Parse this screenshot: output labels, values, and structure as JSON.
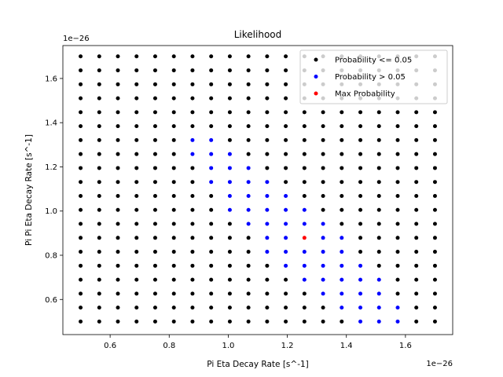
{
  "chart_data": {
    "type": "scatter",
    "title": "Likelihood",
    "xlabel": "Pi Eta Decay Rate [s^-1]",
    "ylabel": "Pi Pi Eta Decay Rate [s^-1]",
    "x_offset_text": "1e−26",
    "y_offset_text": "1e−26",
    "xlim": [
      0.44,
      1.76
    ],
    "ylim": [
      0.441,
      1.749
    ],
    "xticks": [
      0.6,
      0.8,
      1.0,
      1.2,
      1.4,
      1.6
    ],
    "xtick_labels": [
      "0.6",
      "0.8",
      "1.0",
      "1.2",
      "1.4",
      "1.6"
    ],
    "yticks": [
      0.6,
      0.8,
      1.0,
      1.2,
      1.4,
      1.6
    ],
    "ytick_labels": [
      "0.6",
      "0.8",
      "1.0",
      "1.2",
      "1.4",
      "1.6"
    ],
    "grid": false,
    "legend_position": "top-right",
    "grid_x": [
      0.5,
      0.5632,
      0.6263,
      0.6895,
      0.7526,
      0.8158,
      0.8789,
      0.9421,
      1.0053,
      1.0684,
      1.1316,
      1.1947,
      1.2579,
      1.3211,
      1.3842,
      1.4474,
      1.5105,
      1.5737,
      1.6368,
      1.7
    ],
    "grid_y": [
      0.5,
      0.5632,
      0.6263,
      0.6895,
      0.7526,
      0.8158,
      0.8789,
      0.9421,
      1.0053,
      1.0684,
      1.1316,
      1.1947,
      1.2579,
      1.3211,
      1.3842,
      1.4474,
      1.5105,
      1.5737,
      1.6368,
      1.7
    ],
    "series": [
      {
        "name": "Probability <= 0.05",
        "color": "#000000",
        "rule": "all grid points not listed in the other series"
      },
      {
        "name": "Probability > 0.05",
        "color": "#0000ff",
        "points": [
          [
            0.8789,
            1.3211
          ],
          [
            0.8789,
            1.2579
          ],
          [
            0.9421,
            1.3211
          ],
          [
            0.9421,
            1.2579
          ],
          [
            0.9421,
            1.1947
          ],
          [
            0.9421,
            1.1316
          ],
          [
            1.0053,
            1.2579
          ],
          [
            1.0053,
            1.1947
          ],
          [
            1.0053,
            1.1316
          ],
          [
            1.0053,
            1.0684
          ],
          [
            1.0053,
            1.0053
          ],
          [
            1.0684,
            1.1947
          ],
          [
            1.0684,
            1.1316
          ],
          [
            1.0684,
            1.0684
          ],
          [
            1.0684,
            1.0053
          ],
          [
            1.0684,
            0.9421
          ],
          [
            1.1316,
            1.1316
          ],
          [
            1.1316,
            1.0684
          ],
          [
            1.1316,
            1.0053
          ],
          [
            1.1316,
            0.9421
          ],
          [
            1.1316,
            0.8789
          ],
          [
            1.1316,
            0.8158
          ],
          [
            1.1947,
            1.0684
          ],
          [
            1.1947,
            1.0053
          ],
          [
            1.1947,
            0.9421
          ],
          [
            1.1947,
            0.8789
          ],
          [
            1.1947,
            0.8158
          ],
          [
            1.1947,
            0.7526
          ],
          [
            1.2579,
            1.0053
          ],
          [
            1.2579,
            0.9421
          ],
          [
            1.2579,
            0.8158
          ],
          [
            1.2579,
            0.7526
          ],
          [
            1.2579,
            0.6895
          ],
          [
            1.3211,
            0.9421
          ],
          [
            1.3211,
            0.8789
          ],
          [
            1.3211,
            0.8158
          ],
          [
            1.3211,
            0.7526
          ],
          [
            1.3211,
            0.6895
          ],
          [
            1.3211,
            0.6263
          ],
          [
            1.3842,
            0.8789
          ],
          [
            1.3842,
            0.8158
          ],
          [
            1.3842,
            0.7526
          ],
          [
            1.3842,
            0.6895
          ],
          [
            1.3842,
            0.6263
          ],
          [
            1.3842,
            0.5632
          ],
          [
            1.4474,
            0.7526
          ],
          [
            1.4474,
            0.6895
          ],
          [
            1.4474,
            0.6263
          ],
          [
            1.4474,
            0.5632
          ],
          [
            1.4474,
            0.5
          ],
          [
            1.5105,
            0.6895
          ],
          [
            1.5105,
            0.6263
          ],
          [
            1.5105,
            0.5632
          ],
          [
            1.5105,
            0.5
          ],
          [
            1.5737,
            0.5632
          ],
          [
            1.5737,
            0.5
          ]
        ]
      },
      {
        "name": "Max Probability",
        "color": "#ff0000",
        "points": [
          [
            1.2579,
            0.8789
          ]
        ]
      }
    ]
  }
}
